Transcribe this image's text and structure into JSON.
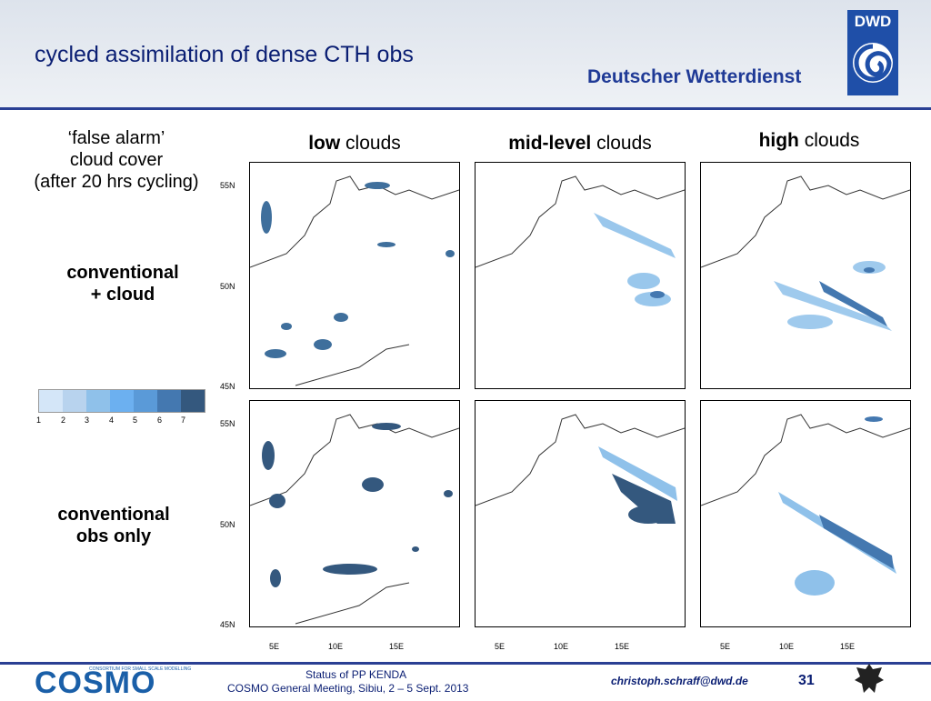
{
  "slide": {
    "title": "cycled assimilation of dense CTH obs",
    "brand": "Deutscher Wetterdienst",
    "logo_text": "DWD"
  },
  "row_labels": {
    "false_alarm_line1": "‘false alarm’",
    "false_alarm_line2": "cloud cover",
    "false_alarm_line3": "(after 20 hrs cycling)",
    "conventional_cloud_line1": "conventional",
    "conventional_cloud_line2": "+ cloud",
    "conventional_only_line1": "conventional",
    "conventional_only_line2": "obs only"
  },
  "columns": [
    {
      "bold": "low",
      "rest": " clouds"
    },
    {
      "bold": "mid-level",
      "rest": " clouds"
    },
    {
      "bold": "high",
      "rest": " clouds"
    }
  ],
  "map_axes": {
    "lat_labels": [
      "55N",
      "50N",
      "45N"
    ],
    "lon_labels": [
      "5E",
      "10E",
      "15E"
    ]
  },
  "legend": {
    "values": [
      "1",
      "2",
      "3",
      "4",
      "5",
      "6",
      "7"
    ],
    "colors": [
      "#d4e6f8",
      "#b8d3ee",
      "#8fc1ea",
      "#6cb0f0",
      "#5a9ad8",
      "#4478b0",
      "#34587e"
    ]
  },
  "footer": {
    "line1": "Status of PP KENDA",
    "line2": "COSMO General Meeting, Sibiu, 2 – 5 Sept. 2013",
    "email": "christoph.schraff@dwd.de",
    "page": "31",
    "cosmo": "COSMO",
    "cosmo_sub": "CONSORTIUM FOR SMALL SCALE MODELLING"
  }
}
